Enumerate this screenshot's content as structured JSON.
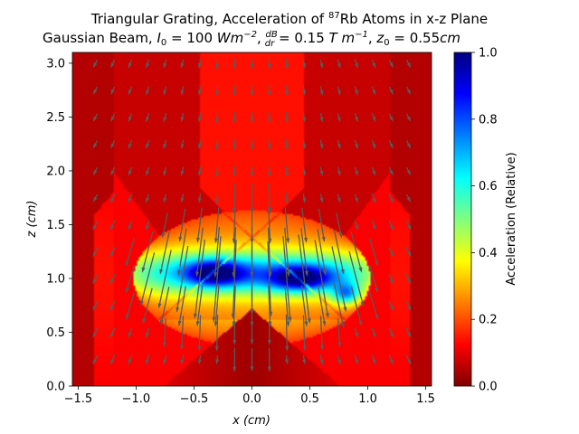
{
  "chart_data": {
    "type": "heatmap",
    "title_line1": {
      "prefix": "Triangular Grating, Acceleration of ",
      "mass_number": "87",
      "suffix": "Rb Atoms in x-z Plane"
    },
    "title_line2": {
      "text_a": "Gaussian Beam, ",
      "I_symbol": "I",
      "I_sub": "0",
      "I_value": " = 100 ",
      "I_unit_base": "Wm",
      "I_unit_exp": "−2",
      "sep1": ", ",
      "grad_num": "dB",
      "grad_den": "dr",
      "grad_value": " = 0.15 ",
      "grad_unit_base": "T m",
      "grad_unit_exp": "−1",
      "sep2": ", ",
      "z_symbol": "z",
      "z_sub": "0",
      "z_value": " = 0.55",
      "z_unit": "cm"
    },
    "xlabel_var": "x",
    "xlabel_unit": "(cm)",
    "ylabel_var": "z",
    "ylabel_unit": "(cm)",
    "xlim": [
      -1.55,
      1.55
    ],
    "ylim": [
      0.0,
      3.1
    ],
    "xticks": [
      -1.5,
      -1.0,
      -0.5,
      0.0,
      0.5,
      1.0,
      1.5
    ],
    "xtick_labels": [
      "−1.5",
      "−1.0",
      "−0.5",
      "0.0",
      "0.5",
      "1.0",
      "1.5"
    ],
    "yticks": [
      0.0,
      0.5,
      1.0,
      1.5,
      2.0,
      2.5,
      3.0
    ],
    "ytick_labels": [
      "0.0",
      "0.5",
      "1.0",
      "1.5",
      "2.0",
      "2.5",
      "3.0"
    ],
    "colorbar": {
      "label": "Acceleration (Relative)",
      "range": [
        0.0,
        1.0
      ],
      "colormap": "jet_r",
      "ticks": [
        0.0,
        0.2,
        0.4,
        0.6,
        0.8,
        1.0
      ],
      "tick_labels": [
        "0.0",
        "0.2",
        "0.4",
        "0.6",
        "0.8",
        "1.0"
      ]
    },
    "grating_half_width_cm": 1.2,
    "beam_center_height_cm": 1.0,
    "quiver": {
      "x_positions": [
        -1.35,
        -1.2,
        -1.05,
        -0.9,
        -0.75,
        -0.6,
        -0.45,
        -0.3,
        -0.15,
        0.0,
        0.15,
        0.3,
        0.45,
        0.6,
        0.75,
        0.9,
        1.05,
        1.2,
        1.35
      ],
      "z_positions": [
        0.25,
        0.5,
        0.75,
        1.0,
        1.25,
        1.5,
        1.75,
        2.0,
        2.25,
        2.5,
        2.75,
        3.0
      ],
      "arrow_color": "#5a5a5a"
    }
  }
}
